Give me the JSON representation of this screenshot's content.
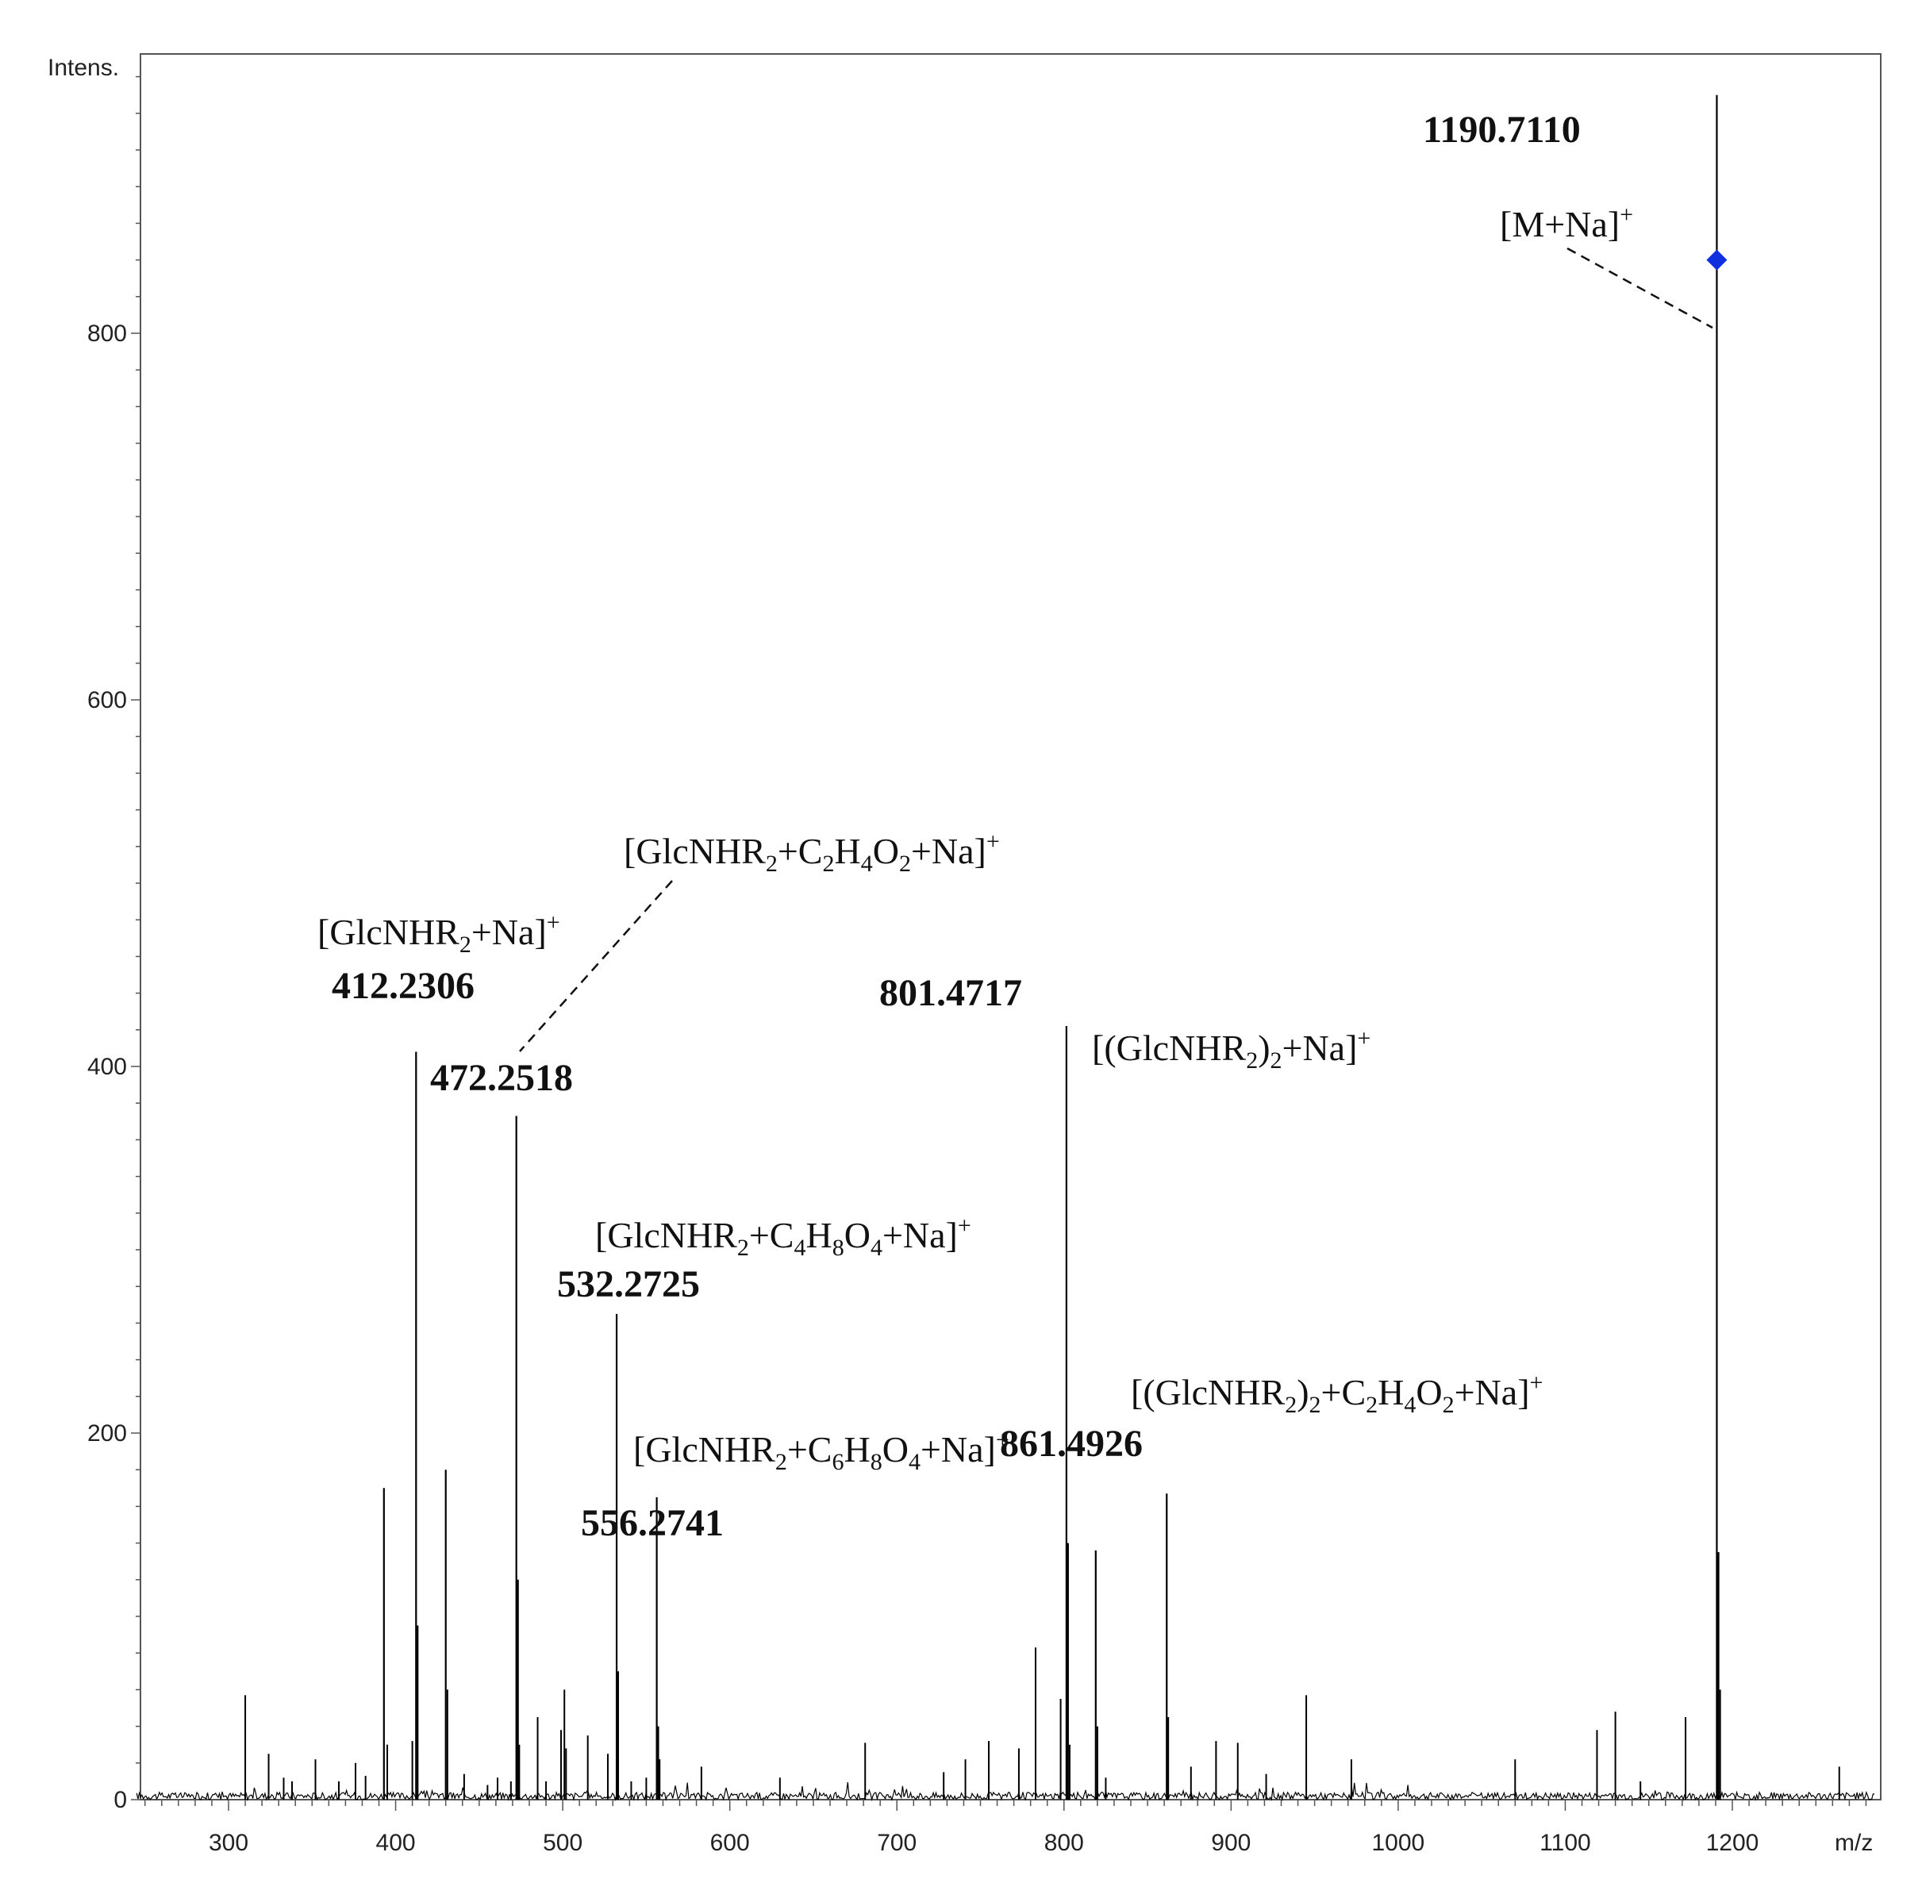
{
  "chart_data": {
    "type": "line",
    "title": "",
    "xlabel": "m/z",
    "ylabel": "Intens.",
    "xlim": [
      245,
      1285
    ],
    "ylim": [
      -10,
      955
    ],
    "x_ticks": [
      300,
      400,
      500,
      600,
      700,
      800,
      900,
      1000,
      1100,
      1200
    ],
    "y_ticks": [
      0,
      200,
      400,
      600,
      800
    ],
    "grid": false,
    "legend": "none",
    "colors": {
      "line": "#000000",
      "marker": "#1030e0",
      "frame": "#555555"
    },
    "peaks": [
      {
        "x": 310,
        "y": 57
      },
      {
        "x": 324,
        "y": 25
      },
      {
        "x": 333,
        "y": 12
      },
      {
        "x": 338,
        "y": 10
      },
      {
        "x": 352,
        "y": 22
      },
      {
        "x": 366,
        "y": 10
      },
      {
        "x": 376,
        "y": 20
      },
      {
        "x": 382,
        "y": 13
      },
      {
        "x": 393,
        "y": 170
      },
      {
        "x": 395,
        "y": 30
      },
      {
        "x": 410,
        "y": 32
      },
      {
        "x": 412.2306,
        "y": 408
      },
      {
        "x": 413.2,
        "y": 95
      },
      {
        "x": 430,
        "y": 180
      },
      {
        "x": 431,
        "y": 60
      },
      {
        "x": 441,
        "y": 14
      },
      {
        "x": 455,
        "y": 8
      },
      {
        "x": 461,
        "y": 12
      },
      {
        "x": 469,
        "y": 10
      },
      {
        "x": 472.2518,
        "y": 373
      },
      {
        "x": 473.2,
        "y": 120
      },
      {
        "x": 474,
        "y": 30
      },
      {
        "x": 485,
        "y": 45
      },
      {
        "x": 490,
        "y": 10
      },
      {
        "x": 499,
        "y": 38
      },
      {
        "x": 501,
        "y": 60
      },
      {
        "x": 502,
        "y": 28
      },
      {
        "x": 515,
        "y": 35
      },
      {
        "x": 527,
        "y": 25
      },
      {
        "x": 532.2725,
        "y": 265
      },
      {
        "x": 533.2,
        "y": 70
      },
      {
        "x": 541,
        "y": 10
      },
      {
        "x": 550,
        "y": 12
      },
      {
        "x": 556.2741,
        "y": 165
      },
      {
        "x": 557.2,
        "y": 40
      },
      {
        "x": 558,
        "y": 22
      },
      {
        "x": 583,
        "y": 18
      },
      {
        "x": 630,
        "y": 12
      },
      {
        "x": 681,
        "y": 31
      },
      {
        "x": 728,
        "y": 15
      },
      {
        "x": 741,
        "y": 22
      },
      {
        "x": 755,
        "y": 32
      },
      {
        "x": 773,
        "y": 28
      },
      {
        "x": 783,
        "y": 83
      },
      {
        "x": 798,
        "y": 55
      },
      {
        "x": 801.4717,
        "y": 422
      },
      {
        "x": 802.4,
        "y": 140
      },
      {
        "x": 803.4,
        "y": 30
      },
      {
        "x": 819,
        "y": 136
      },
      {
        "x": 820,
        "y": 40
      },
      {
        "x": 825,
        "y": 12
      },
      {
        "x": 861.4926,
        "y": 167
      },
      {
        "x": 862.4,
        "y": 45
      },
      {
        "x": 876,
        "y": 18
      },
      {
        "x": 891,
        "y": 32
      },
      {
        "x": 904,
        "y": 31
      },
      {
        "x": 921,
        "y": 14
      },
      {
        "x": 945,
        "y": 57
      },
      {
        "x": 972,
        "y": 22
      },
      {
        "x": 1070,
        "y": 22
      },
      {
        "x": 1119,
        "y": 38
      },
      {
        "x": 1130,
        "y": 48
      },
      {
        "x": 1145,
        "y": 10
      },
      {
        "x": 1172,
        "y": 45
      },
      {
        "x": 1190.711,
        "y": 930
      },
      {
        "x": 1191.7,
        "y": 135
      },
      {
        "x": 1192.7,
        "y": 60
      },
      {
        "x": 1264,
        "y": 18
      }
    ],
    "peak_labels": [
      {
        "x": 412.2306,
        "text": "412.2306"
      },
      {
        "x": 472.2518,
        "text": "472.2518"
      },
      {
        "x": 532.2725,
        "text": "532.2725"
      },
      {
        "x": 556.2741,
        "text": "556.2741"
      },
      {
        "x": 801.4717,
        "text": "801.4717"
      },
      {
        "x": 861.4926,
        "text": "861.4926"
      },
      {
        "x": 1190.711,
        "text": "1190.7110"
      }
    ],
    "ion_annotations": [
      {
        "text": "[GlcNHR2+Na]+",
        "parts": [
          [
            "[GlcNHR",
            ""
          ],
          [
            "2",
            "sub"
          ],
          [
            "+Na]",
            ""
          ],
          [
            "+",
            "sup"
          ]
        ]
      },
      {
        "text": "[GlcNHR2+C2H4O2+Na]+",
        "parts": [
          [
            "[GlcNHR",
            ""
          ],
          [
            "2",
            "sub"
          ],
          [
            "+C",
            ""
          ],
          [
            "2",
            "sub"
          ],
          [
            "H",
            ""
          ],
          [
            "4",
            "sub"
          ],
          [
            "O",
            ""
          ],
          [
            "2",
            "sub"
          ],
          [
            "+Na]",
            ""
          ],
          [
            "+",
            "sup"
          ]
        ]
      },
      {
        "text": "[GlcNHR2+C4H8O4+Na]+",
        "parts": [
          [
            "[GlcNHR",
            ""
          ],
          [
            "2",
            "sub"
          ],
          [
            "+C",
            ""
          ],
          [
            "4",
            "sub"
          ],
          [
            "H",
            ""
          ],
          [
            "8",
            "sub"
          ],
          [
            "O",
            ""
          ],
          [
            "4",
            "sub"
          ],
          [
            "+Na]",
            ""
          ],
          [
            "+",
            "sup"
          ]
        ]
      },
      {
        "text": "[GlcNHR2+C6H8O4+Na]+",
        "parts": [
          [
            "[GlcNHR",
            ""
          ],
          [
            "2",
            "sub"
          ],
          [
            "+C",
            ""
          ],
          [
            "6",
            "sub"
          ],
          [
            "H",
            ""
          ],
          [
            "8",
            "sub"
          ],
          [
            "O",
            ""
          ],
          [
            "4",
            "sub"
          ],
          [
            "+Na]",
            ""
          ],
          [
            "+",
            "sup"
          ]
        ]
      },
      {
        "text": "[(GlcNHR2)2+Na]+",
        "parts": [
          [
            "[(GlcNHR",
            ""
          ],
          [
            "2",
            "sub"
          ],
          [
            ")",
            ""
          ],
          [
            "2",
            "sub"
          ],
          [
            "+Na]",
            ""
          ],
          [
            "+",
            "sup"
          ]
        ]
      },
      {
        "text": "[(GlcNHR2)2+C2H4O2+Na]+",
        "parts": [
          [
            "[(GlcNHR",
            ""
          ],
          [
            "2",
            "sub"
          ],
          [
            ")",
            ""
          ],
          [
            "2",
            "sub"
          ],
          [
            "+C",
            ""
          ],
          [
            "2",
            "sub"
          ],
          [
            "H",
            ""
          ],
          [
            "4",
            "sub"
          ],
          [
            "O",
            ""
          ],
          [
            "2",
            "sub"
          ],
          [
            "+Na]",
            ""
          ],
          [
            "+",
            "sup"
          ]
        ]
      },
      {
        "text": "[M+Na]+",
        "parts": [
          [
            "[M+Na]",
            ""
          ],
          [
            "+",
            "sup"
          ]
        ]
      }
    ],
    "marker": {
      "x": 1190.711,
      "y": 840,
      "shape": "diamond"
    }
  }
}
